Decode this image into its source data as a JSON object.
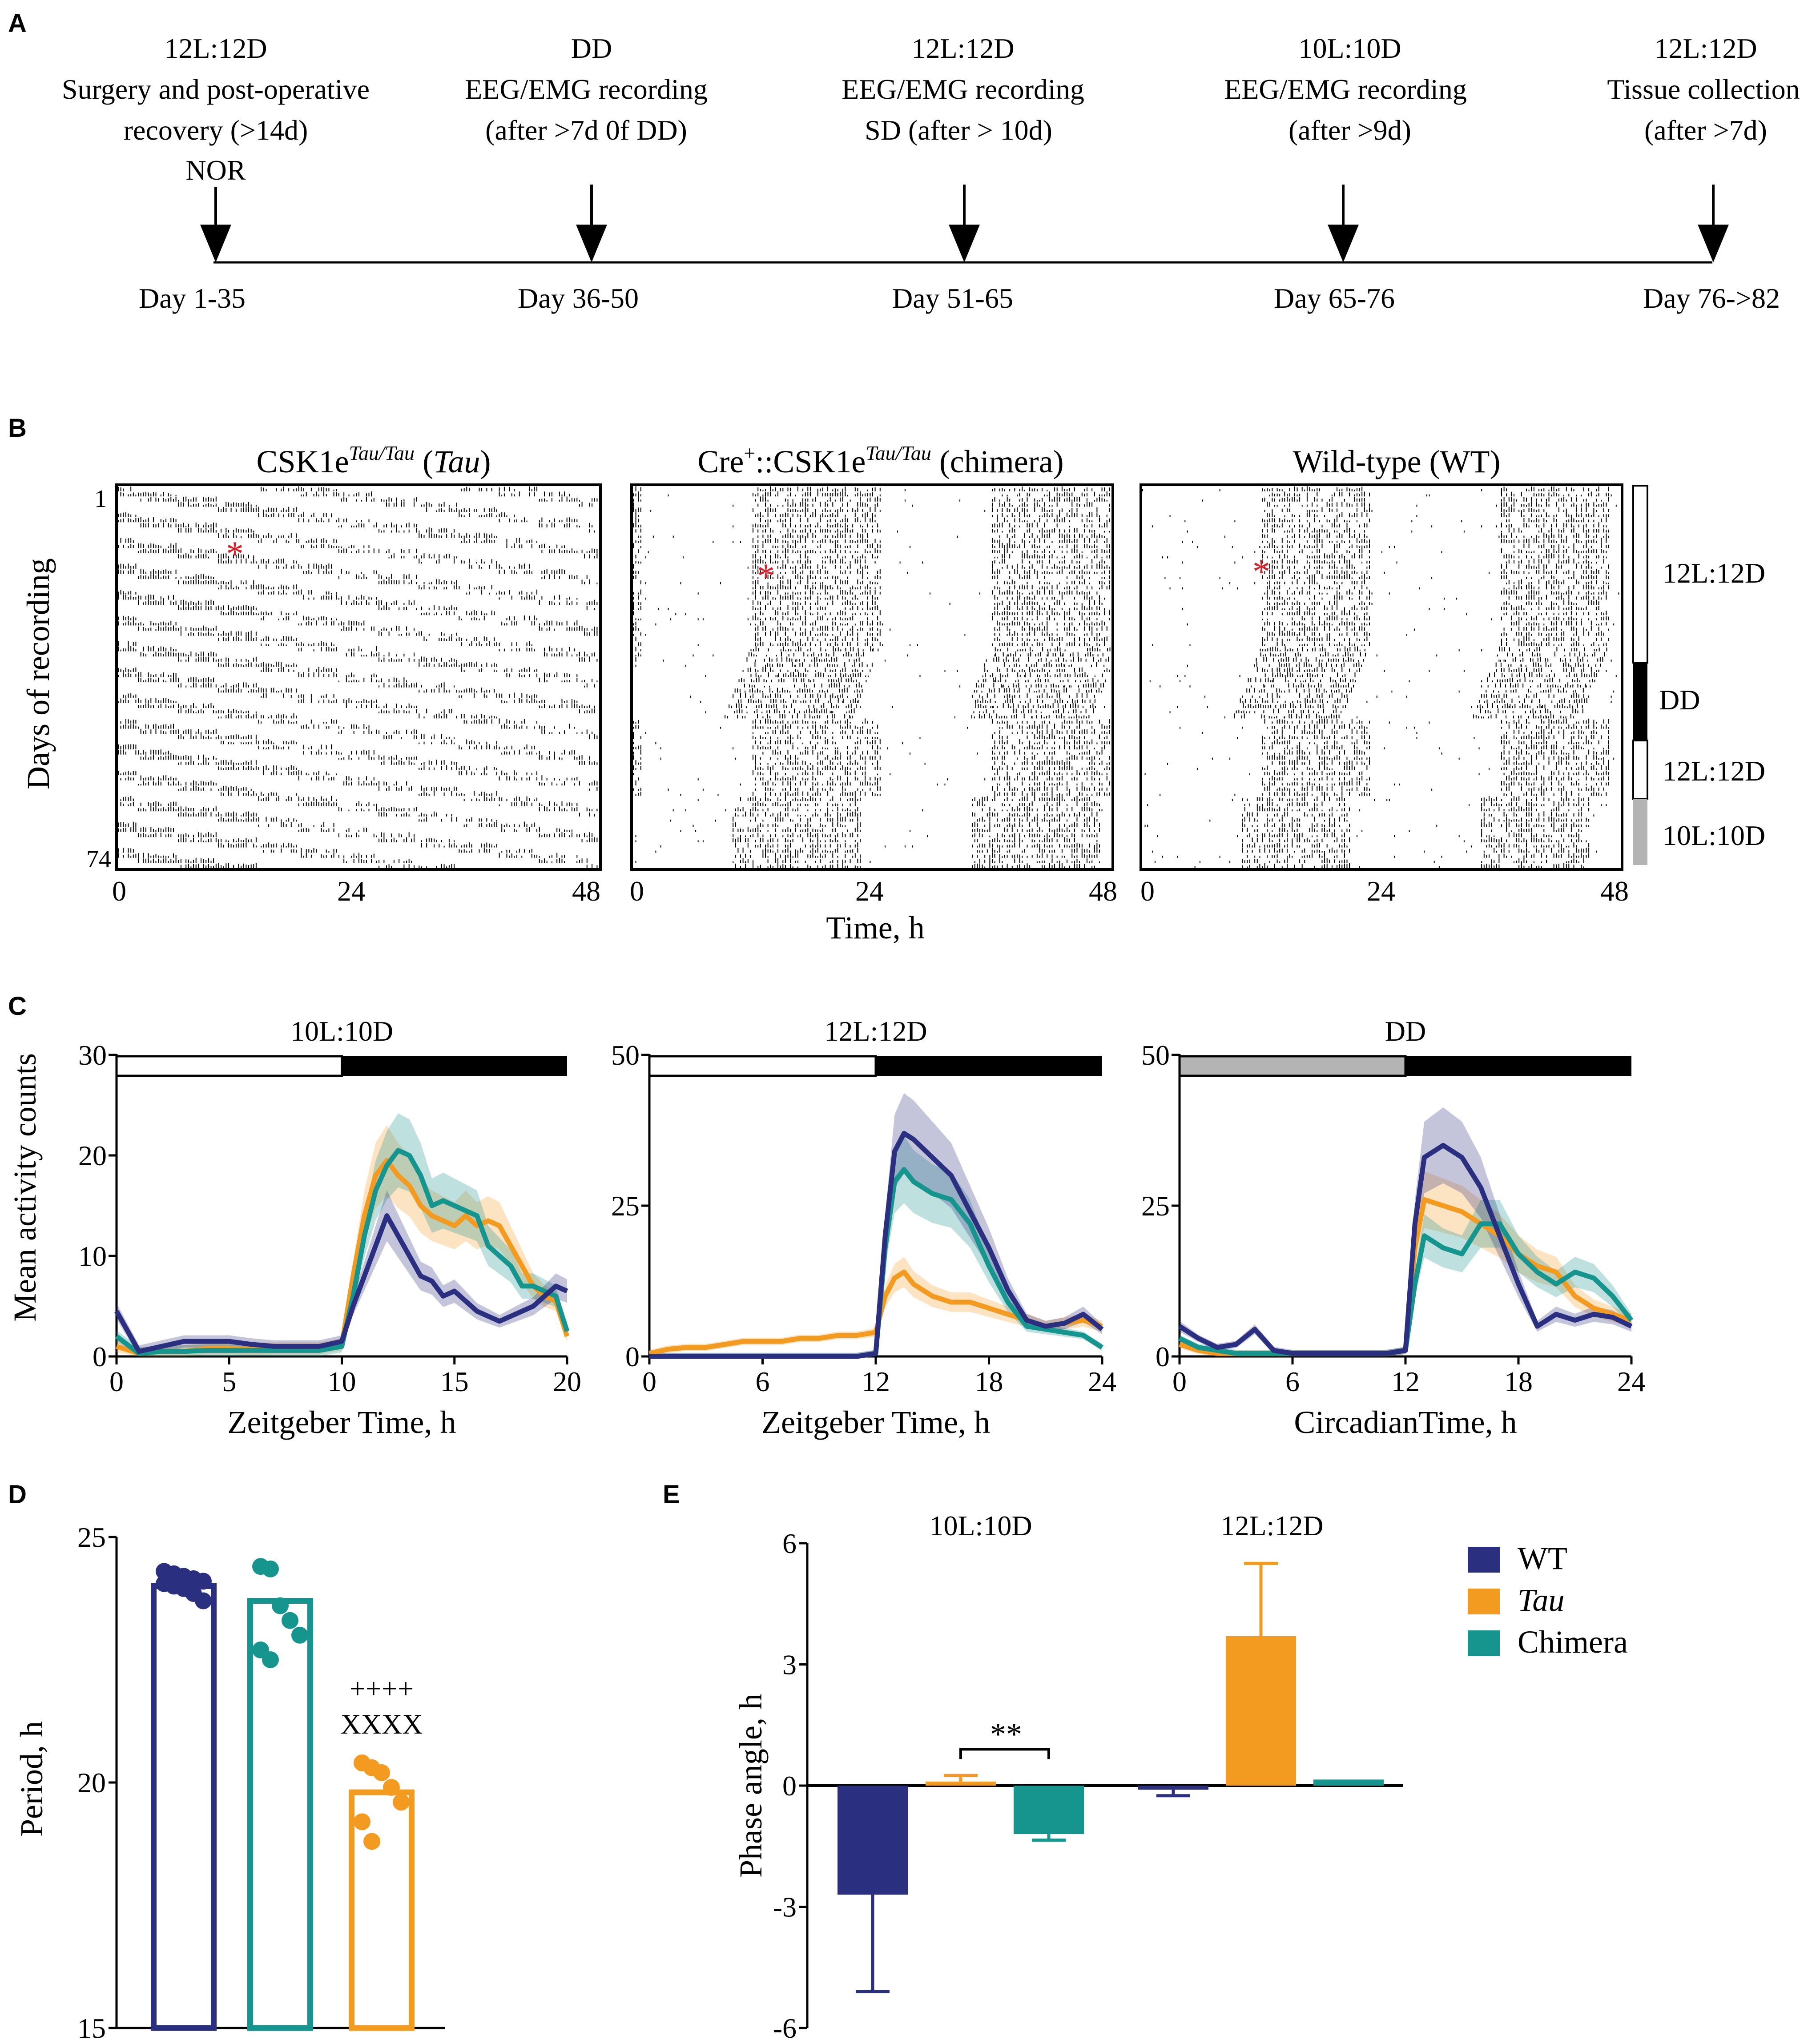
{
  "panel_letters": [
    "A",
    "B",
    "C",
    "D",
    "E"
  ],
  "colors": {
    "wt": "#2b2f7f",
    "tau": "#f39a21",
    "chimera": "#16958f",
    "gray": "#b4b4b4",
    "black": "#000000",
    "red": "#d6202a"
  },
  "panel_a": {
    "stages": [
      {
        "l1": "12L:12D",
        "l2": "Surgery and post-operative",
        "l3": "recovery (>14d)",
        "l4": "NOR",
        "day": "Day 1-35"
      },
      {
        "l1": "DD",
        "l2": "EEG/EMG recording",
        "l3": "(after >7d 0f DD)",
        "l4": "",
        "day": "Day 36-50"
      },
      {
        "l1": "12L:12D",
        "l2": "EEG/EMG recording",
        "l3": "SD (after > 10d)",
        "l4": "",
        "day": "Day 51-65"
      },
      {
        "l1": "10L:10D",
        "l2": "EEG/EMG recording",
        "l3": "(after >9d)",
        "l4": "",
        "day": "Day 65-76"
      },
      {
        "l1": "12L:12D",
        "l2": "Tissue collection",
        "l3": "(after >7d)",
        "l4": "",
        "day": "Day 76->82"
      }
    ]
  },
  "panel_b": {
    "titles": [
      {
        "pre": "CSK1e",
        "sup": "Tau/Tau",
        "post": " (",
        "ital": "Tau",
        "end": ")"
      },
      {
        "pre": "Cre",
        "sup0": "+",
        "mid": "::CSK1e",
        "sup": "Tau/Tau",
        "post": " (chimera)"
      },
      {
        "pre": "Wild-type (WT)"
      }
    ],
    "ylabel": "Days of recording",
    "ytick_top": "1",
    "ytick_bottom": "74",
    "xticks": [
      "0",
      "24",
      "48"
    ],
    "xlabel": "Time, h",
    "asterisk": "*",
    "legend": [
      "12L:12D",
      "DD",
      "12L:12D",
      "10L:10D"
    ]
  },
  "chart_data": [
    {
      "type": "line",
      "panel": "C1",
      "title": "10L:10D",
      "xlabel": "Zeitgeber Time, h",
      "ylabel": "Mean activity counts",
      "xlim": [
        0,
        20
      ],
      "ylim": [
        0,
        30
      ],
      "xticks": [
        0,
        5,
        10,
        15,
        20
      ],
      "yticks": [
        0,
        10,
        20,
        30
      ],
      "light_bar": {
        "light": [
          0,
          10
        ],
        "dark": [
          10,
          20
        ]
      },
      "x": [
        0,
        1,
        2,
        3,
        4,
        5,
        6,
        7,
        8,
        9,
        10,
        10.5,
        11,
        11.5,
        12,
        12.5,
        13,
        13.5,
        14,
        14.5,
        15,
        15.5,
        16,
        16.5,
        17,
        17.5,
        18,
        18.5,
        19,
        19.5,
        20
      ],
      "series": [
        {
          "name": "WT",
          "values": [
            4.5,
            0.5,
            1,
            1.5,
            1.5,
            1.5,
            1.2,
            1,
            1,
            1,
            1.5,
            5,
            8,
            11,
            14,
            12,
            10,
            8,
            7.5,
            6,
            6.5,
            5.5,
            4.5,
            4,
            3.5,
            4,
            4.5,
            5,
            6,
            7,
            6.5
          ]
        },
        {
          "name": "Tau",
          "values": [
            1,
            0.3,
            0.5,
            0.5,
            0.8,
            0.8,
            0.7,
            0.8,
            0.8,
            0.8,
            1.2,
            8,
            14,
            18,
            19.5,
            18,
            17,
            15,
            14,
            13.5,
            13,
            14,
            13,
            13.5,
            13,
            11,
            9,
            7,
            6,
            5.5,
            2
          ]
        },
        {
          "name": "Chimera",
          "values": [
            2,
            0.3,
            0.5,
            0.5,
            0.6,
            0.6,
            0.6,
            0.6,
            0.6,
            0.6,
            1,
            6,
            12,
            16.5,
            19,
            20.5,
            20,
            18,
            15,
            15.5,
            15,
            14.5,
            14,
            11,
            10,
            9,
            7,
            7,
            6.5,
            6,
            2.5
          ]
        }
      ]
    },
    {
      "type": "line",
      "panel": "C2",
      "title": "12L:12D",
      "xlabel": "Zeitgeber Time, h",
      "ylabel": "",
      "xlim": [
        0,
        24
      ],
      "ylim": [
        0,
        50
      ],
      "xticks": [
        0,
        6,
        12,
        18,
        24
      ],
      "yticks": [
        0,
        25,
        50
      ],
      "light_bar": {
        "light": [
          0,
          12
        ],
        "dark": [
          12,
          24
        ]
      },
      "x": [
        0,
        1,
        2,
        3,
        4,
        5,
        6,
        7,
        8,
        9,
        10,
        11,
        12,
        12.5,
        13,
        13.5,
        14,
        15,
        16,
        17,
        18,
        19,
        20,
        21,
        22,
        23,
        24
      ],
      "series": [
        {
          "name": "WT",
          "values": [
            0,
            0,
            0,
            0,
            0,
            0,
            0,
            0,
            0,
            0,
            0,
            0,
            0.5,
            20,
            34,
            37,
            36,
            33,
            30,
            24,
            18,
            11,
            6,
            5,
            5.5,
            7,
            4.5
          ]
        },
        {
          "name": "Tau",
          "values": [
            0.5,
            1.2,
            1.5,
            1.5,
            2,
            2.5,
            2.5,
            2.5,
            3,
            3,
            3.5,
            3.5,
            4,
            10,
            13,
            14,
            12,
            10,
            9,
            9,
            8,
            7,
            6,
            5,
            5.5,
            6,
            5
          ]
        },
        {
          "name": "Chimera",
          "values": [
            0,
            0,
            0,
            0,
            0,
            0,
            0,
            0,
            0,
            0,
            0,
            0,
            0.5,
            18,
            29,
            31,
            29,
            27,
            26,
            22,
            15,
            9,
            5,
            4.5,
            4,
            3.5,
            1.5
          ]
        }
      ]
    },
    {
      "type": "line",
      "panel": "C3",
      "title": "DD",
      "xlabel": "CircadianTime, h",
      "ylabel": "",
      "xlim": [
        0,
        24
      ],
      "ylim": [
        0,
        50
      ],
      "xticks": [
        0,
        6,
        12,
        18,
        24
      ],
      "yticks": [
        0,
        25,
        50
      ],
      "light_bar": {
        "subjective_day": [
          0,
          12
        ],
        "subjective_night": [
          12,
          24
        ]
      },
      "x": [
        0,
        1,
        2,
        3,
        4,
        5,
        6,
        7,
        8,
        9,
        10,
        11,
        12,
        12.5,
        13,
        14,
        15,
        16,
        17,
        18,
        19,
        20,
        21,
        22,
        23,
        24
      ],
      "series": [
        {
          "name": "WT",
          "values": [
            5,
            3,
            1.5,
            2,
            4.5,
            1,
            0.5,
            0.5,
            0.5,
            0.5,
            0.5,
            0.5,
            1,
            22,
            33,
            35,
            33,
            28,
            20,
            12,
            5,
            7,
            6,
            7,
            6.5,
            5
          ]
        },
        {
          "name": "Tau",
          "values": [
            2,
            1,
            0.5,
            0.5,
            0.5,
            0.5,
            0.5,
            0.5,
            0.5,
            0.5,
            0.5,
            0.5,
            1,
            18,
            26,
            25,
            24,
            22,
            20,
            17,
            15,
            14,
            10,
            8,
            7,
            6
          ]
        },
        {
          "name": "Chimera",
          "values": [
            3,
            1.5,
            1,
            0.5,
            0.5,
            0.5,
            0.5,
            0.5,
            0.5,
            0.5,
            0.5,
            0.5,
            1,
            12,
            20,
            18,
            17,
            22,
            22,
            17,
            14,
            12,
            14,
            13,
            10,
            6
          ]
        }
      ]
    },
    {
      "type": "bar",
      "panel": "D",
      "ylabel": "Period, h",
      "ylim": [
        15,
        25
      ],
      "yticks": [
        15,
        20,
        25
      ],
      "categories": [
        "WT",
        "Chimera",
        "Tau"
      ],
      "values": [
        24.0,
        23.7,
        19.8
      ],
      "points": [
        [
          24.3,
          24.25,
          24.2,
          24.15,
          24.1,
          24.05,
          24.0,
          23.95,
          23.85,
          23.7
        ],
        [
          24.4,
          24.35,
          23.6,
          23.3,
          23.0,
          22.7,
          22.5
        ],
        [
          20.4,
          20.3,
          20.2,
          19.9,
          19.6,
          19.2,
          18.8
        ]
      ],
      "annotation_lines": [
        "++++",
        "XXXX"
      ]
    },
    {
      "type": "bar",
      "panel": "E",
      "ylabel": "Phase angle, h",
      "ylim": [
        -6,
        6
      ],
      "yticks": [
        -6,
        -3,
        0,
        3,
        6
      ],
      "groups": [
        "10L:10D",
        "12L:12D"
      ],
      "series": [
        {
          "name": "WT",
          "values": [
            -2.7,
            -0.1
          ],
          "errors": [
            2.4,
            0.15
          ]
        },
        {
          "name": "Tau",
          "values": [
            0.1,
            3.7
          ],
          "errors": [
            0.15,
            1.8
          ]
        },
        {
          "name": "Chimera",
          "values": [
            -1.2,
            0.15
          ],
          "errors": [
            0.15,
            0
          ]
        }
      ],
      "significance": "**",
      "legend": [
        "WT",
        "Tau",
        "Chimera"
      ]
    }
  ]
}
